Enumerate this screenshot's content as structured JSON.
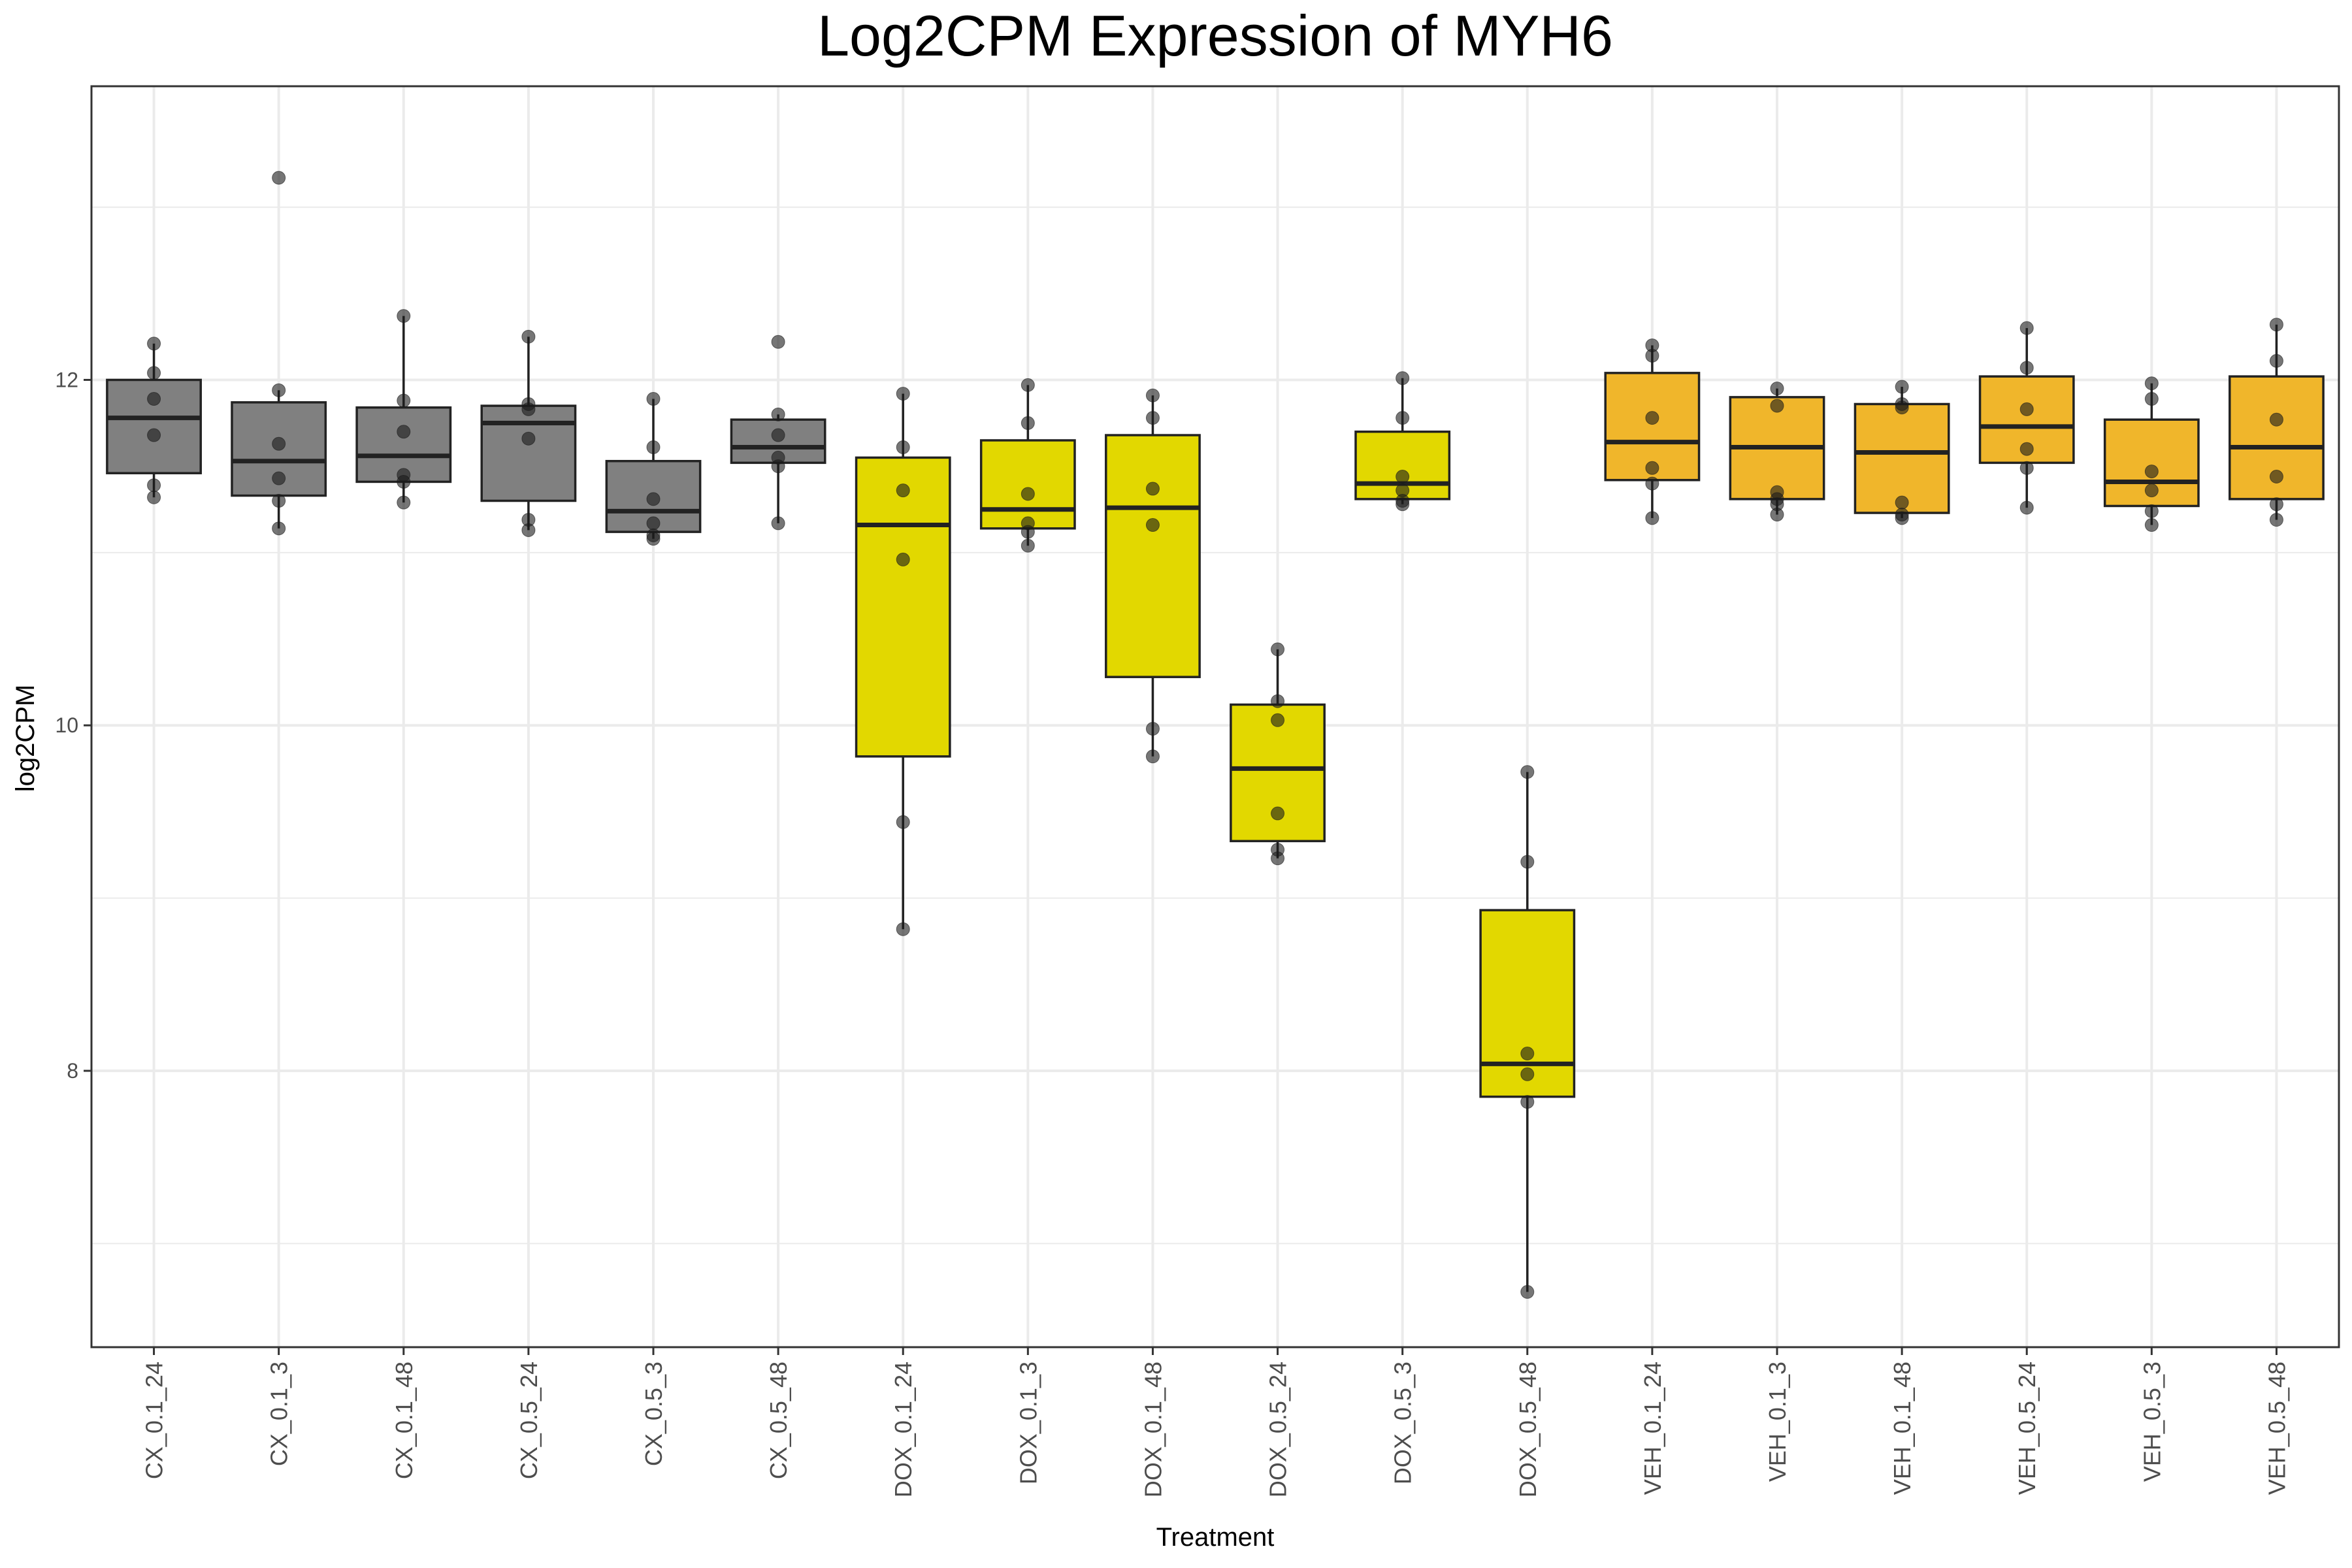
{
  "chart_data": {
    "type": "box",
    "title": "Log2CPM Expression of MYH6",
    "xlabel": "Treatment",
    "ylabel": "log2CPM",
    "ylim": [
      6.4,
      13.7
    ],
    "yticks": [
      8,
      10,
      12
    ],
    "grid": true,
    "colors": {
      "CX": "#808080",
      "DOX": "#e2d800",
      "VEH": "#f0b62b",
      "panel_border": "#333333",
      "grid": "#ebebeb",
      "point": "#1a1a1a"
    },
    "groups": [
      {
        "label": "CX_0.1_24",
        "family": "CX",
        "whisker_low": 11.32,
        "q1": 11.46,
        "median": 11.78,
        "q3": 12.0,
        "whisker_high": 12.21,
        "points": [
          12.21,
          12.04,
          11.89,
          11.68,
          11.39,
          11.32
        ]
      },
      {
        "label": "CX_0.1_3",
        "family": "CX",
        "whisker_low": 11.14,
        "q1": 11.33,
        "median": 11.53,
        "q3": 11.87,
        "whisker_high": 11.94,
        "points": [
          13.17,
          11.94,
          11.63,
          11.43,
          11.3,
          11.14
        ]
      },
      {
        "label": "CX_0.1_48",
        "family": "CX",
        "whisker_low": 11.29,
        "q1": 11.41,
        "median": 11.56,
        "q3": 11.84,
        "whisker_high": 12.37,
        "points": [
          12.37,
          11.88,
          11.7,
          11.45,
          11.41,
          11.29
        ]
      },
      {
        "label": "CX_0.5_24",
        "family": "CX",
        "whisker_low": 11.13,
        "q1": 11.3,
        "median": 11.75,
        "q3": 11.85,
        "whisker_high": 12.25,
        "points": [
          12.25,
          11.86,
          11.83,
          11.66,
          11.19,
          11.13
        ]
      },
      {
        "label": "CX_0.5_3",
        "family": "CX",
        "whisker_low": 11.08,
        "q1": 11.12,
        "median": 11.24,
        "q3": 11.53,
        "whisker_high": 11.89,
        "points": [
          11.89,
          11.61,
          11.31,
          11.17,
          11.1,
          11.08
        ]
      },
      {
        "label": "CX_0.5_48",
        "family": "CX",
        "whisker_low": 11.17,
        "q1": 11.52,
        "median": 11.61,
        "q3": 11.77,
        "whisker_high": 11.8,
        "points": [
          12.22,
          11.8,
          11.68,
          11.55,
          11.5,
          11.17
        ]
      },
      {
        "label": "DOX_0.1_24",
        "family": "DOX",
        "whisker_low": 8.82,
        "q1": 9.82,
        "median": 11.16,
        "q3": 11.55,
        "whisker_high": 11.92,
        "points": [
          11.92,
          11.61,
          11.36,
          10.96,
          9.44,
          8.82
        ]
      },
      {
        "label": "DOX_0.1_3",
        "family": "DOX",
        "whisker_low": 11.04,
        "q1": 11.14,
        "median": 11.25,
        "q3": 11.65,
        "whisker_high": 11.97,
        "points": [
          11.97,
          11.75,
          11.34,
          11.17,
          11.12,
          11.04
        ]
      },
      {
        "label": "DOX_0.1_48",
        "family": "DOX",
        "whisker_low": 9.82,
        "q1": 10.28,
        "median": 11.26,
        "q3": 11.68,
        "whisker_high": 11.91,
        "points": [
          11.91,
          11.78,
          11.37,
          11.16,
          9.98,
          9.82
        ]
      },
      {
        "label": "DOX_0.5_24",
        "family": "DOX",
        "whisker_low": 9.23,
        "q1": 9.33,
        "median": 9.75,
        "q3": 10.12,
        "whisker_high": 10.44,
        "points": [
          10.44,
          10.14,
          10.03,
          9.49,
          9.28,
          9.23
        ]
      },
      {
        "label": "DOX_0.5_3",
        "family": "DOX",
        "whisker_low": 11.28,
        "q1": 11.31,
        "median": 11.4,
        "q3": 11.7,
        "whisker_high": 12.01,
        "points": [
          12.01,
          11.78,
          11.44,
          11.36,
          11.3,
          11.28
        ]
      },
      {
        "label": "DOX_0.5_48",
        "family": "DOX",
        "whisker_low": 6.72,
        "q1": 7.85,
        "median": 8.04,
        "q3": 8.93,
        "whisker_high": 9.73,
        "points": [
          9.73,
          9.21,
          8.1,
          7.98,
          7.82,
          6.72
        ]
      },
      {
        "label": "VEH_0.1_24",
        "family": "VEH",
        "whisker_low": 11.2,
        "q1": 11.42,
        "median": 11.64,
        "q3": 12.04,
        "whisker_high": 12.2,
        "points": [
          12.2,
          12.14,
          11.78,
          11.49,
          11.4,
          11.2
        ]
      },
      {
        "label": "VEH_0.1_3",
        "family": "VEH",
        "whisker_low": 11.22,
        "q1": 11.31,
        "median": 11.61,
        "q3": 11.9,
        "whisker_high": 11.95,
        "points": [
          11.95,
          11.85,
          11.35,
          11.31,
          11.28,
          11.22
        ]
      },
      {
        "label": "VEH_0.1_48",
        "family": "VEH",
        "whisker_low": 11.2,
        "q1": 11.23,
        "median": 11.58,
        "q3": 11.86,
        "whisker_high": 11.96,
        "points": [
          11.96,
          11.86,
          11.84,
          11.29,
          11.22,
          11.2
        ]
      },
      {
        "label": "VEH_0.5_24",
        "family": "VEH",
        "whisker_low": 11.26,
        "q1": 11.52,
        "median": 11.73,
        "q3": 12.02,
        "whisker_high": 12.3,
        "points": [
          12.3,
          12.07,
          11.83,
          11.6,
          11.49,
          11.26
        ]
      },
      {
        "label": "VEH_0.5_3",
        "family": "VEH",
        "whisker_low": 11.16,
        "q1": 11.27,
        "median": 11.41,
        "q3": 11.77,
        "whisker_high": 11.98,
        "points": [
          11.98,
          11.89,
          11.47,
          11.36,
          11.24,
          11.16
        ]
      },
      {
        "label": "VEH_0.5_48",
        "family": "VEH",
        "whisker_low": 11.19,
        "q1": 11.31,
        "median": 11.61,
        "q3": 12.02,
        "whisker_high": 12.32,
        "points": [
          12.32,
          12.11,
          11.77,
          11.44,
          11.28,
          11.19
        ]
      }
    ]
  }
}
